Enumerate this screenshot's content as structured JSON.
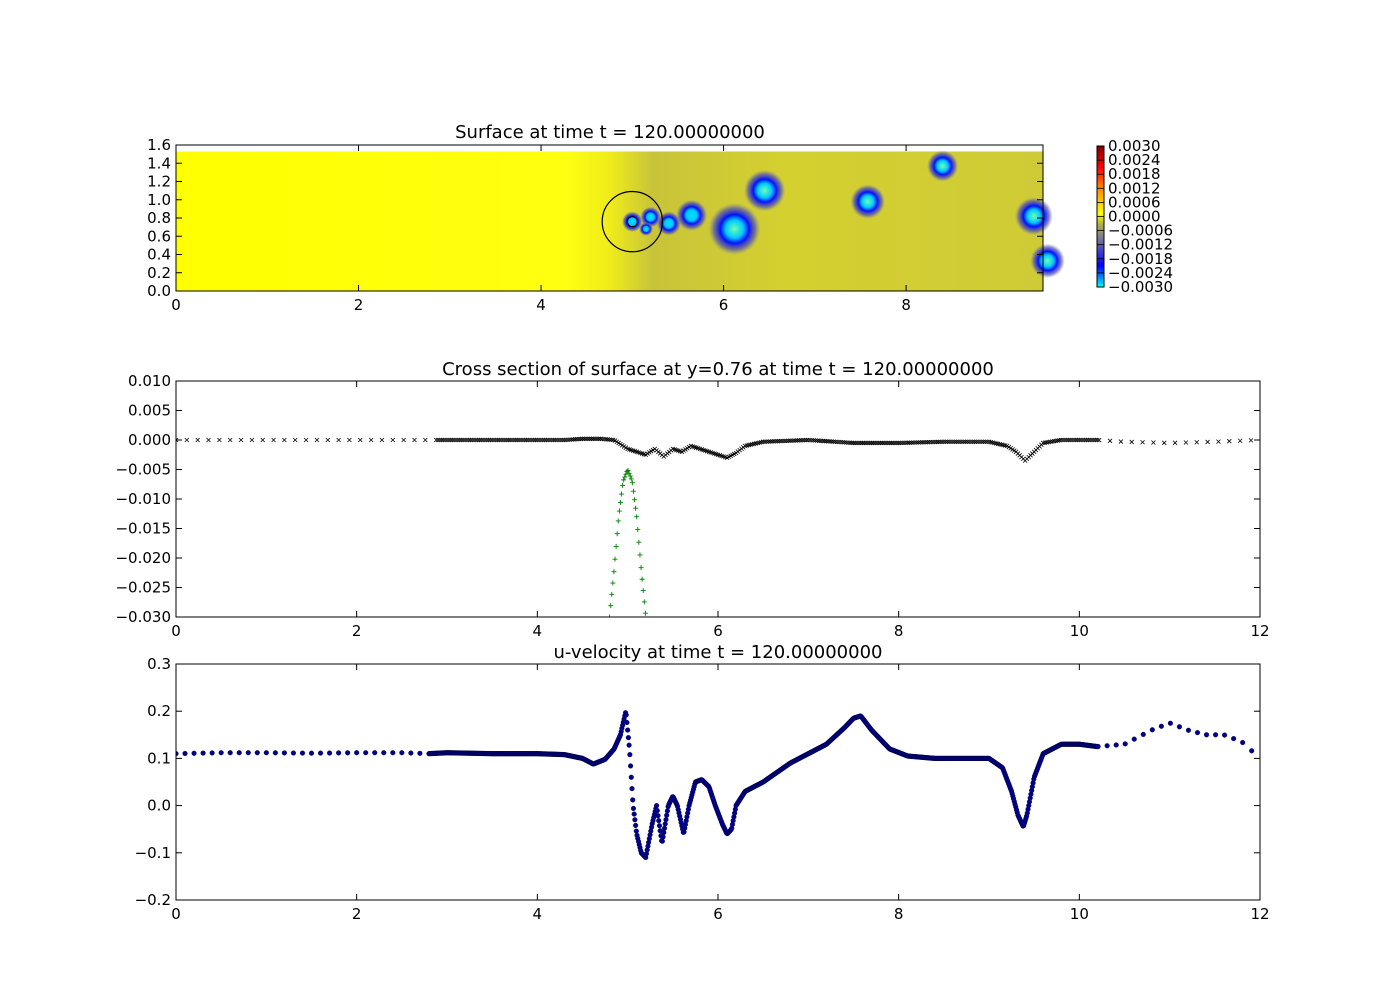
{
  "chart_data": [
    {
      "type": "heatmap",
      "title": "Surface at time t =   120.00000000",
      "xlim": [
        0,
        9.5
      ],
      "ylim": [
        0,
        1.6
      ],
      "xticks": [
        "0",
        "2",
        "4",
        "6",
        "8"
      ],
      "yticks": [
        "0.0",
        "0.2",
        "0.4",
        "0.6",
        "0.8",
        "1.0",
        "1.2",
        "1.4",
        "1.6"
      ],
      "colorbar": {
        "ticks": [
          "0.0030",
          "0.0024",
          "0.0018",
          "0.0012",
          "0.0006",
          "0.0000",
          "−0.0006",
          "−0.0012",
          "−0.0018",
          "−0.0024",
          "−0.0030"
        ],
        "range": [
          -0.003,
          0.003
        ],
        "colors": [
          "#00ffff",
          "#0000ff",
          "#6a6aaa",
          "#b4b440",
          "#ffff00",
          "#ff8800",
          "#ff0000",
          "#800000"
        ]
      },
      "background_value": 0.0,
      "depressions": [
        {
          "x": 5.0,
          "y": 0.76,
          "r": 0.06,
          "strength": -0.0022
        },
        {
          "x": 5.2,
          "y": 0.81,
          "r": 0.06,
          "strength": -0.0022
        },
        {
          "x": 5.15,
          "y": 0.68,
          "r": 0.04,
          "strength": -0.0018
        },
        {
          "x": 5.4,
          "y": 0.74,
          "r": 0.07,
          "strength": -0.0022
        },
        {
          "x": 5.65,
          "y": 0.83,
          "r": 0.09,
          "strength": -0.0024
        },
        {
          "x": 6.12,
          "y": 0.68,
          "r": 0.15,
          "strength": -0.0028
        },
        {
          "x": 6.45,
          "y": 1.1,
          "r": 0.12,
          "strength": -0.0026
        },
        {
          "x": 7.58,
          "y": 0.98,
          "r": 0.1,
          "strength": -0.0026
        },
        {
          "x": 8.4,
          "y": 1.37,
          "r": 0.09,
          "strength": -0.0026
        },
        {
          "x": 9.4,
          "y": 0.82,
          "r": 0.11,
          "strength": -0.0026
        },
        {
          "x": 9.55,
          "y": 0.33,
          "r": 0.1,
          "strength": -0.0026
        }
      ],
      "circle": {
        "x": 5.0,
        "y": 0.76,
        "r": 0.33
      }
    },
    {
      "type": "scatter",
      "title": "Cross section of surface at y=0.76 at time t =   120.00000000",
      "xlim": [
        0,
        12
      ],
      "ylim": [
        -0.03,
        0.01
      ],
      "xticks": [
        "0",
        "2",
        "4",
        "6",
        "8",
        "10",
        "12"
      ],
      "yticks": [
        "0.010",
        "0.005",
        "0.000",
        "−0.005",
        "−0.010",
        "−0.015",
        "−0.020",
        "−0.025",
        "−0.030"
      ],
      "series": [
        {
          "marker": "x",
          "color": "#000000",
          "x": [
            0.0,
            0.3,
            0.6,
            1.0,
            1.5,
            2.0,
            2.5,
            2.8,
            3.0,
            3.5,
            4.0,
            4.3,
            4.5,
            4.7,
            4.85,
            4.95,
            5.0,
            5.1,
            5.2,
            5.3,
            5.4,
            5.5,
            5.6,
            5.7,
            5.8,
            5.9,
            6.0,
            6.1,
            6.2,
            6.3,
            6.5,
            7.0,
            7.5,
            8.0,
            8.5,
            9.0,
            9.2,
            9.3,
            9.4,
            9.5,
            9.6,
            9.8,
            10.0,
            10.2,
            10.5,
            11.0,
            11.5,
            12.0
          ],
          "y": [
            0.0,
            0.0,
            0.0,
            0.0,
            0.0,
            0.0,
            0.0,
            0.0,
            0.0,
            0.0,
            0.0,
            0.0,
            0.0002,
            0.0002,
            0.0,
            -0.001,
            -0.0015,
            -0.002,
            -0.0025,
            -0.0015,
            -0.0028,
            -0.0015,
            -0.002,
            -0.001,
            -0.0015,
            -0.002,
            -0.0025,
            -0.003,
            -0.0022,
            -0.001,
            -0.0003,
            0.0,
            -0.0005,
            -0.0005,
            -0.0003,
            -0.0003,
            -0.001,
            -0.002,
            -0.0035,
            -0.002,
            -0.0005,
            0.0,
            0.0,
            0.0,
            -0.0003,
            -0.0005,
            -0.0003,
            0.0
          ]
        },
        {
          "marker": "+",
          "color": "#008000",
          "x": [
            4.8,
            4.85,
            4.9,
            4.95,
            5.0,
            5.05,
            5.1,
            5.15,
            5.2
          ],
          "y": [
            -0.03,
            -0.022,
            -0.013,
            -0.007,
            -0.005,
            -0.007,
            -0.013,
            -0.022,
            -0.03
          ]
        }
      ]
    },
    {
      "type": "scatter",
      "title": "u-velocity at time t =   120.00000000",
      "xlim": [
        0,
        12
      ],
      "ylim": [
        -0.2,
        0.3
      ],
      "xticks": [
        "0",
        "2",
        "4",
        "6",
        "8",
        "10",
        "12"
      ],
      "yticks": [
        "0.3",
        "0.2",
        "0.1",
        "0.0",
        "−0.1",
        "−0.2"
      ],
      "series": [
        {
          "marker": "o",
          "color": "#00008b",
          "x": [
            0.0,
            0.5,
            1.0,
            1.5,
            2.0,
            2.5,
            2.8,
            3.0,
            3.5,
            4.0,
            4.3,
            4.5,
            4.62,
            4.75,
            4.85,
            4.92,
            4.98,
            5.02,
            5.06,
            5.1,
            5.15,
            5.2,
            5.27,
            5.32,
            5.38,
            5.45,
            5.5,
            5.55,
            5.62,
            5.68,
            5.75,
            5.82,
            5.9,
            5.97,
            6.05,
            6.1,
            6.15,
            6.2,
            6.3,
            6.5,
            6.8,
            7.0,
            7.2,
            7.4,
            7.5,
            7.58,
            7.7,
            7.9,
            8.1,
            8.4,
            8.7,
            9.0,
            9.15,
            9.25,
            9.32,
            9.38,
            9.42,
            9.5,
            9.6,
            9.8,
            10.0,
            10.2,
            10.5,
            10.8,
            11.0,
            11.2,
            11.4,
            11.6,
            11.8,
            12.0
          ],
          "y": [
            0.11,
            0.112,
            0.112,
            0.111,
            0.112,
            0.112,
            0.11,
            0.112,
            0.11,
            0.11,
            0.108,
            0.1,
            0.088,
            0.098,
            0.12,
            0.15,
            0.2,
            0.12,
            0.0,
            -0.06,
            -0.1,
            -0.11,
            -0.04,
            0.0,
            -0.08,
            0.0,
            0.02,
            0.0,
            -0.06,
            0.0,
            0.05,
            0.055,
            0.04,
            0.0,
            -0.04,
            -0.06,
            -0.05,
            0.0,
            0.03,
            0.05,
            0.09,
            0.11,
            0.13,
            0.165,
            0.185,
            0.19,
            0.16,
            0.12,
            0.105,
            0.1,
            0.1,
            0.1,
            0.08,
            0.03,
            -0.02,
            -0.045,
            -0.02,
            0.06,
            0.11,
            0.13,
            0.13,
            0.125,
            0.13,
            0.16,
            0.175,
            0.16,
            0.15,
            0.15,
            0.135,
            0.1
          ]
        }
      ]
    }
  ]
}
